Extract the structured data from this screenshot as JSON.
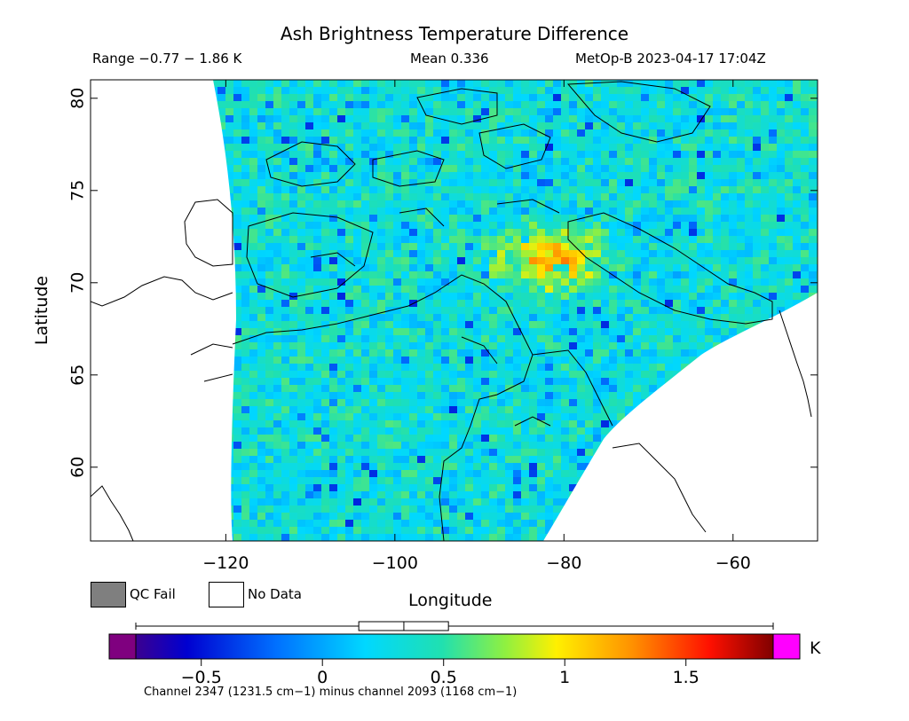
{
  "chart_data": {
    "type": "heatmap",
    "title": "Ash Brightness Temperature Difference",
    "subtitle_range": "Range −0.77 − 1.86 K",
    "subtitle_mean": "Mean 0.336",
    "subtitle_satellite": "MetOp-B 2023-04-17 17:04Z",
    "xlabel": "Longitude",
    "ylabel": "Latitude",
    "xlim": [
      -136,
      -50
    ],
    "ylim": [
      56,
      81
    ],
    "x_ticks": [
      -120,
      -100,
      -80,
      -60
    ],
    "x_tick_labels": [
      "−120",
      "−100",
      "−80",
      "−60"
    ],
    "y_ticks": [
      60,
      65,
      70,
      75,
      80
    ],
    "y_tick_labels": [
      "60",
      "65",
      "70",
      "75",
      "80"
    ],
    "colorbar": {
      "range": [
        -0.77,
        1.86
      ],
      "ticks": [
        -0.5,
        0,
        0.5,
        1,
        1.5
      ],
      "tick_labels": [
        "−0.5",
        "0",
        "0.5",
        "1",
        "1.5"
      ],
      "unit": "K",
      "below_range_color": "#7f007f",
      "above_range_color": "#ff00ff",
      "box_plot": {
        "min": -0.77,
        "q1": 0.15,
        "median": 0.336,
        "q3": 0.52,
        "max": 1.86
      },
      "caption": "Channel 2347 (1231.5 cm−1) minus channel 2093 (1168 cm−1)"
    },
    "legend": [
      {
        "label": "QC Fail",
        "color": "#7f7f7f"
      },
      {
        "label": "No Data",
        "color": "#ffffff"
      }
    ],
    "field_description": "mostly cyan/green values 0.2–0.6 K, warmer orange/red band 1.0–1.6 K near 72°N 90°W–75°W",
    "grid": false
  }
}
